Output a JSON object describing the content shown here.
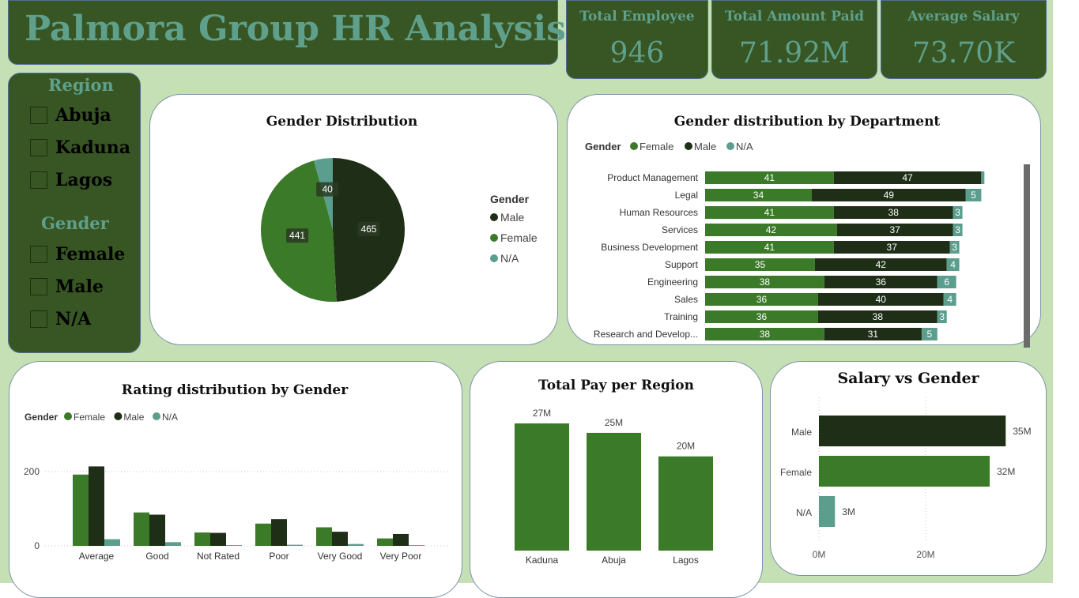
{
  "header": {
    "title": "Palmora Group HR Analysis"
  },
  "kpis": [
    {
      "label": "Total Employee",
      "value": "946"
    },
    {
      "label": "Total Amount Paid",
      "value": "71.92M"
    },
    {
      "label": "Average Salary",
      "value": "73.70K"
    }
  ],
  "slicers": {
    "region": {
      "title": "Region",
      "items": [
        "Abuja",
        "Kaduna",
        "Lagos"
      ]
    },
    "gender": {
      "title": "Gender",
      "items": [
        "Female",
        "Male",
        "N/A"
      ]
    }
  },
  "colors": {
    "female": "#3a7a28",
    "male": "#1f2e16",
    "na": "#5b9e8e",
    "dark_panel": "#375623",
    "background": "#c5e0b4",
    "accent_text": "#5fa08c"
  },
  "chart_data": [
    {
      "id": "gender-distribution",
      "type": "pie",
      "title": "Gender Distribution",
      "legend_title": "Gender",
      "legend_position": "right",
      "legend": [
        "Male",
        "Female",
        "N/A"
      ],
      "slices": [
        {
          "label": "Male",
          "value": 465
        },
        {
          "label": "Female",
          "value": 441
        },
        {
          "label": "N/A",
          "value": 40
        }
      ]
    },
    {
      "id": "gender-by-department",
      "type": "bar",
      "orientation": "horizontal",
      "stacked": true,
      "title": "Gender distribution by Department",
      "legend_title": "Gender",
      "legend_position": "top-left",
      "categories": [
        "Product Management",
        "Legal",
        "Human Resources",
        "Services",
        "Business Development",
        "Support",
        "Engineering",
        "Sales",
        "Training",
        "Research and Develop..."
      ],
      "series": [
        {
          "name": "Female",
          "values": [
            41,
            34,
            41,
            42,
            41,
            35,
            38,
            36,
            36,
            38
          ]
        },
        {
          "name": "Male",
          "values": [
            47,
            49,
            38,
            37,
            37,
            42,
            36,
            40,
            38,
            31
          ]
        },
        {
          "name": "N/A",
          "values": [
            1,
            5,
            3,
            3,
            3,
            4,
            6,
            4,
            3,
            5
          ]
        }
      ],
      "labels_shown": [
        [
          "41",
          "47",
          ""
        ],
        [
          "34",
          "49",
          "5"
        ],
        [
          "41",
          "38",
          "3"
        ],
        [
          "42",
          "37",
          "3"
        ],
        [
          "41",
          "37",
          "3"
        ],
        [
          "35",
          "42",
          "4"
        ],
        [
          "38",
          "36",
          "6"
        ],
        [
          "36",
          "40",
          "4"
        ],
        [
          "36",
          "38",
          "3"
        ],
        [
          "38",
          "31",
          "5"
        ]
      ]
    },
    {
      "id": "rating-by-gender",
      "type": "bar",
      "title": "Rating distribution by Gender",
      "legend_title": "Gender",
      "legend_position": "top-left",
      "categories": [
        "Average",
        "Good",
        "Not Rated",
        "Poor",
        "Very Good",
        "Very Poor"
      ],
      "series": [
        {
          "name": "Female",
          "values": [
            192,
            90,
            36,
            60,
            50,
            20
          ]
        },
        {
          "name": "Male",
          "values": [
            214,
            84,
            35,
            72,
            38,
            32
          ]
        },
        {
          "name": "N/A",
          "values": [
            18,
            10,
            2,
            3,
            5,
            2
          ]
        }
      ],
      "y_ticks": [
        "0",
        "200"
      ],
      "ylim": [
        0,
        230
      ],
      "grid": true
    },
    {
      "id": "total-pay-per-region",
      "type": "bar",
      "title": "Total Pay per Region",
      "categories": [
        "Kaduna",
        "Abuja",
        "Lagos"
      ],
      "values": [
        27,
        25,
        20
      ],
      "value_labels": [
        "27M",
        "25M",
        "20M"
      ],
      "ylim": [
        0,
        28
      ]
    },
    {
      "id": "salary-vs-gender",
      "type": "bar",
      "orientation": "horizontal",
      "title": "Salary vs Gender",
      "categories": [
        "Male",
        "Female",
        "N/A"
      ],
      "values": [
        35,
        32,
        3
      ],
      "value_labels": [
        "35M",
        "32M",
        "3M"
      ],
      "x_ticks": [
        "0M",
        "20M"
      ],
      "xlim": [
        0,
        36
      ],
      "grid": true
    }
  ]
}
